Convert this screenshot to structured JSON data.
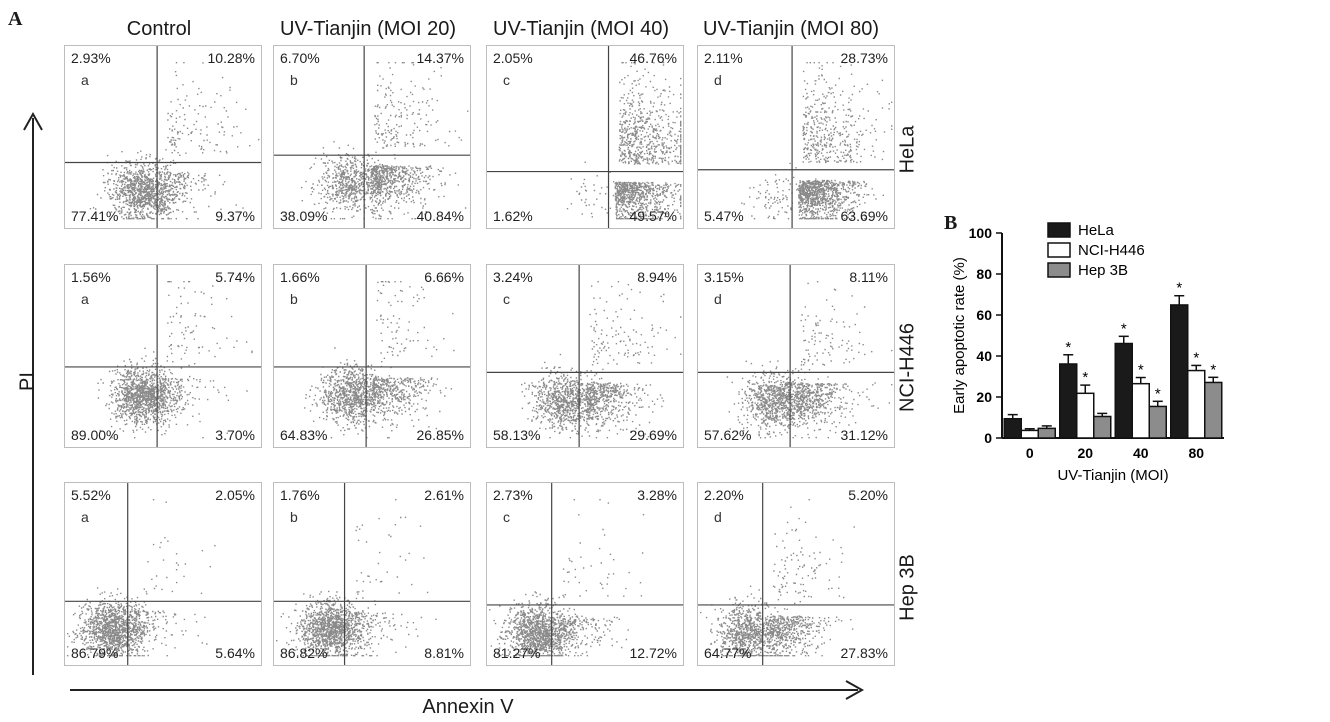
{
  "panels": {
    "a": "A",
    "b": "B"
  },
  "column_titles": [
    "Control",
    "UV-Tianjin (MOI 20)",
    "UV-Tianjin (MOI 40)",
    "UV-Tianjin (MOI 80)"
  ],
  "row_labels": [
    "HeLa",
    "NCI-H446",
    "Hep 3B"
  ],
  "axis_titles": {
    "x": "Annexin V",
    "y": "PI"
  },
  "flow": [
    [
      {
        "sub": "a",
        "ul": "2.93%",
        "ur": "10.28%",
        "ll": "77.41%",
        "lr": "9.37%"
      },
      {
        "sub": "b",
        "ul": "6.70%",
        "ur": "14.37%",
        "ll": "38.09%",
        "lr": "40.84%"
      },
      {
        "sub": "c",
        "ul": "2.05%",
        "ur": "46.76%",
        "ll": "1.62%",
        "lr": "49.57%"
      },
      {
        "sub": "d",
        "ul": "2.11%",
        "ur": "28.73%",
        "ll": "5.47%",
        "lr": "63.69%"
      }
    ],
    [
      {
        "sub": "a",
        "ul": "1.56%",
        "ur": "5.74%",
        "ll": "89.00%",
        "lr": "3.70%"
      },
      {
        "sub": "b",
        "ul": "1.66%",
        "ur": "6.66%",
        "ll": "64.83%",
        "lr": "26.85%"
      },
      {
        "sub": "c",
        "ul": "3.24%",
        "ur": "8.94%",
        "ll": "58.13%",
        "lr": "29.69%"
      },
      {
        "sub": "d",
        "ul": "3.15%",
        "ur": "8.11%",
        "ll": "57.62%",
        "lr": "31.12%"
      }
    ],
    [
      {
        "sub": "a",
        "ul": "5.52%",
        "ur": "2.05%",
        "ll": "86.79%",
        "lr": "5.64%"
      },
      {
        "sub": "b",
        "ul": "1.76%",
        "ur": "2.61%",
        "ll": "86.82%",
        "lr": "8.81%"
      },
      {
        "sub": "c",
        "ul": "2.73%",
        "ur": "3.28%",
        "ll": "81.27%",
        "lr": "12.72%"
      },
      {
        "sub": "d",
        "ul": "2.20%",
        "ur": "5.20%",
        "ll": "64.77%",
        "lr": "27.83%"
      }
    ]
  ],
  "chart_data": {
    "type": "bar",
    "categories": [
      "0",
      "20",
      "40",
      "80"
    ],
    "xlabel": "UV-Tianjin (MOI)",
    "ylabel": "Early apoptotic rate (%)",
    "ylim": [
      0,
      100
    ],
    "yticks": [
      0,
      20,
      40,
      60,
      80,
      100
    ],
    "legend_position": "top-left",
    "significance_marker": "*",
    "series": [
      {
        "name": "HeLa",
        "color": "#1a1a1a",
        "values": [
          9.4,
          36.1,
          46.1,
          64.9
        ],
        "errors": [
          2.0,
          4.5,
          3.5,
          4.5
        ],
        "significant": [
          false,
          true,
          true,
          true
        ]
      },
      {
        "name": "NCI-H446",
        "color": "#ffffff",
        "values": [
          3.7,
          21.8,
          26.5,
          32.9
        ],
        "errors": [
          0.8,
          4.0,
          3.0,
          2.5
        ],
        "significant": [
          false,
          true,
          true,
          true
        ]
      },
      {
        "name": "Hep 3B",
        "color": "#8c8c8c",
        "values": [
          4.7,
          10.5,
          15.4,
          27.1
        ],
        "errors": [
          1.2,
          1.5,
          2.5,
          2.5
        ],
        "significant": [
          false,
          false,
          true,
          true
        ]
      }
    ]
  }
}
